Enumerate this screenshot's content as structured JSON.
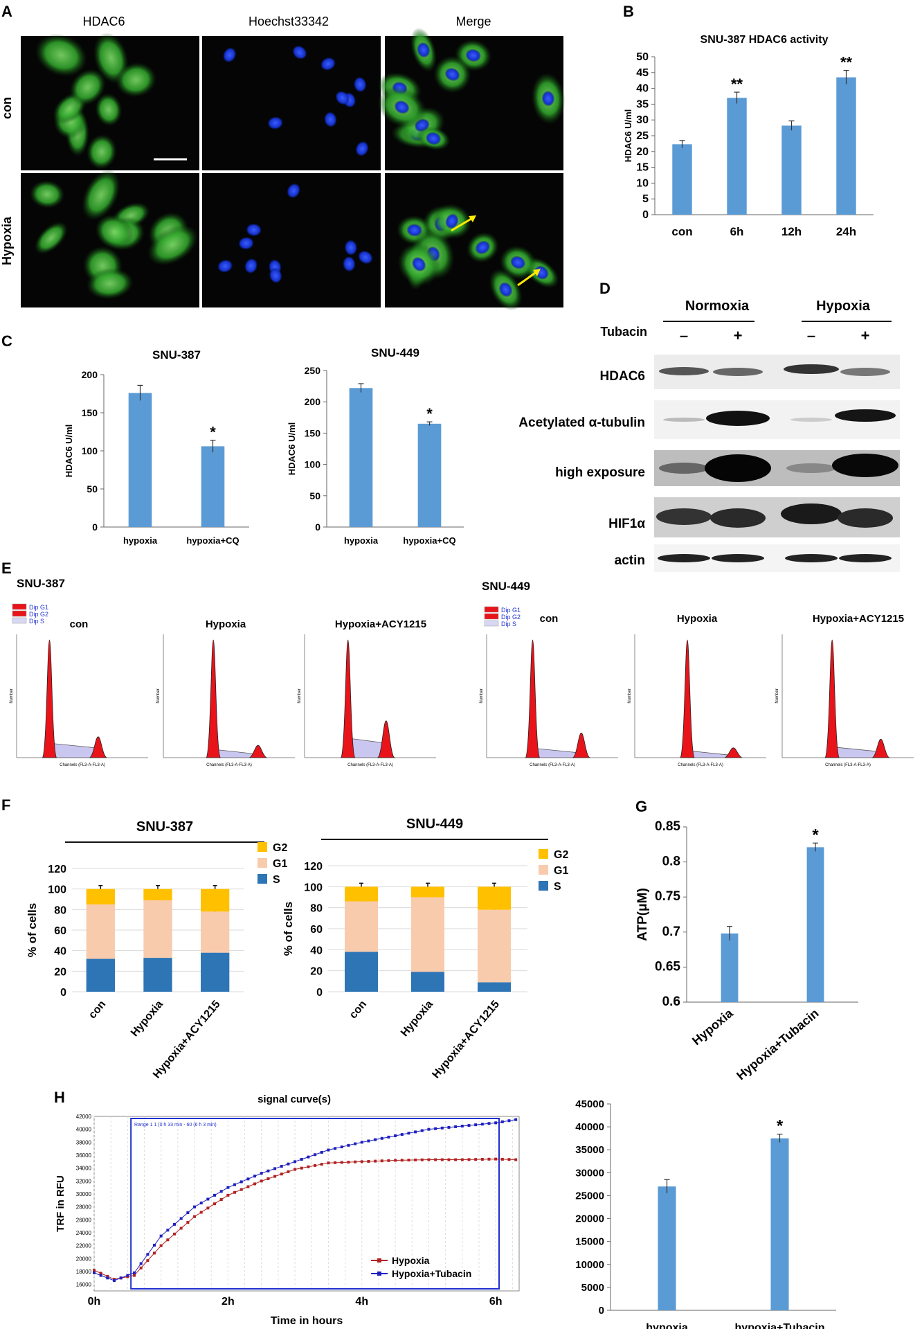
{
  "panel_letters": [
    "A",
    "B",
    "C",
    "D",
    "E",
    "F",
    "G",
    "H"
  ],
  "panelA": {
    "columns": [
      "HDAC6",
      "Hoechst33342",
      "Merge"
    ],
    "rows": [
      "con",
      "Hypoxia"
    ]
  },
  "panelD": {
    "groups": [
      "Normoxia",
      "Hypoxia"
    ],
    "treatment_label": "Tubacin",
    "lane_signs": [
      "–",
      "+",
      "–",
      "+"
    ],
    "blots": [
      "HDAC6",
      "Acetylated α-tubulin",
      "high exposure",
      "HIF1α",
      "actin"
    ]
  },
  "panelE": {
    "cell_lines": [
      "SNU-387",
      "SNU-449"
    ],
    "conditions": [
      "con",
      "Hypoxia",
      "Hypoxia+ACY1215"
    ],
    "legend": [
      "Dip G1",
      "Dip G2",
      "Dip S"
    ],
    "ylabel": "Number",
    "xlabel": "Channels (FL3-A-FL3-A)"
  },
  "chart_data": [
    {
      "id": "B",
      "type": "bar",
      "title": "SNU-387 HDAC6 activity",
      "ylabel": "HDAC6 U/ml",
      "categories": [
        "con",
        "6h",
        "12h",
        "24h"
      ],
      "values": [
        22.3,
        37,
        28.2,
        43.5
      ],
      "errors": [
        1.2,
        1.8,
        1.5,
        2.2
      ],
      "annotations": [
        "",
        "**",
        "",
        "**"
      ],
      "ylim": [
        0,
        50
      ],
      "yticks": [
        0,
        5,
        10,
        15,
        20,
        25,
        30,
        35,
        40,
        45,
        50
      ]
    },
    {
      "id": "C1",
      "type": "bar",
      "title": "SNU-387",
      "ylabel": "HDAC6 U/ml",
      "categories": [
        "hypoxia",
        "hypoxia+CQ"
      ],
      "values": [
        176,
        106
      ],
      "errors": [
        10,
        8
      ],
      "annotations": [
        "",
        "*"
      ],
      "ylim": [
        0,
        200
      ],
      "yticks": [
        0,
        50,
        100,
        150,
        200
      ]
    },
    {
      "id": "C2",
      "type": "bar",
      "title": "SNU-449",
      "ylabel": "HDAC6 U/ml",
      "categories": [
        "hypoxia",
        "hypoxia+CQ"
      ],
      "values": [
        222,
        165
      ],
      "errors": [
        7,
        3
      ],
      "annotations": [
        "",
        "*"
      ],
      "ylim": [
        0,
        250
      ],
      "yticks": [
        0,
        50,
        100,
        150,
        200,
        250
      ]
    },
    {
      "id": "F1",
      "type": "bar",
      "title": "SNU-387",
      "ylabel": "% of cells",
      "categories": [
        "con",
        "Hypoxia",
        "Hypoxia+ACY1215"
      ],
      "series": [
        {
          "name": "S",
          "values": [
            32,
            33,
            38
          ],
          "color": "#2e75b6"
        },
        {
          "name": "G1",
          "values": [
            53,
            56,
            40
          ],
          "color": "#f8cbad"
        },
        {
          "name": "G2",
          "values": [
            15,
            11,
            22
          ],
          "color": "#ffc000"
        }
      ],
      "ylim": [
        0,
        120
      ],
      "yticks": [
        0,
        20,
        40,
        60,
        80,
        100,
        120
      ]
    },
    {
      "id": "F2",
      "type": "bar",
      "title": "SNU-449",
      "ylabel": "% of cells",
      "categories": [
        "con",
        "Hypoxia",
        "Hypoxia+ACY1215"
      ],
      "series": [
        {
          "name": "S",
          "values": [
            38,
            19,
            9
          ],
          "color": "#2e75b6"
        },
        {
          "name": "G1",
          "values": [
            48,
            71,
            69
          ],
          "color": "#f8cbad"
        },
        {
          "name": "G2",
          "values": [
            14,
            10,
            22
          ],
          "color": "#ffc000"
        }
      ],
      "ylim": [
        0,
        120
      ],
      "yticks": [
        0,
        20,
        40,
        60,
        80,
        100,
        120
      ]
    },
    {
      "id": "G",
      "type": "bar",
      "ylabel": "ATP(μM)",
      "categories": [
        "Hypoxia",
        "Hypoxia+Tubacin"
      ],
      "values": [
        0.698,
        0.821
      ],
      "errors": [
        0.01,
        0.006
      ],
      "annotations": [
        "",
        "*"
      ],
      "ylim": [
        0.6,
        0.85
      ],
      "yticks": [
        0.6,
        0.65,
        0.7,
        0.75,
        0.8,
        0.85
      ]
    },
    {
      "id": "H1",
      "type": "line",
      "title": "signal curve(s)",
      "xlabel": "Time in hours",
      "ylabel": "TRF in RFU",
      "xticks": [
        "0h",
        "2h",
        "4h",
        "6h"
      ],
      "yticks": [
        16000,
        18000,
        20000,
        22000,
        24000,
        26000,
        28000,
        30000,
        32000,
        34000,
        36000,
        38000,
        40000,
        42000
      ],
      "ylim": [
        15000,
        42000
      ],
      "range_label": "Range 1 1 (0 h 33 min - 60 (6 h 3 min)",
      "series": [
        {
          "name": "Hypoxia",
          "color": "#b22222",
          "points": [
            [
              0,
              18200
            ],
            [
              0.3,
              16800
            ],
            [
              0.6,
              17400
            ],
            [
              1,
              22000
            ],
            [
              1.5,
              26500
            ],
            [
              2,
              29800
            ],
            [
              2.5,
              32000
            ],
            [
              3,
              33800
            ],
            [
              3.5,
              34800
            ],
            [
              4,
              35000
            ],
            [
              4.5,
              35200
            ],
            [
              5,
              35300
            ],
            [
              5.5,
              35300
            ],
            [
              6,
              35400
            ],
            [
              6.3,
              35300
            ]
          ]
        },
        {
          "name": "Hypoxia+Tubacin",
          "color": "#1f1fbf",
          "points": [
            [
              0,
              17800
            ],
            [
              0.3,
              16600
            ],
            [
              0.6,
              17800
            ],
            [
              1,
              23500
            ],
            [
              1.5,
              28000
            ],
            [
              2,
              31000
            ],
            [
              2.5,
              33200
            ],
            [
              3,
              35000
            ],
            [
              3.5,
              36800
            ],
            [
              4,
              38000
            ],
            [
              4.5,
              39000
            ],
            [
              5,
              40000
            ],
            [
              5.5,
              40500
            ],
            [
              6,
              41000
            ],
            [
              6.3,
              41500
            ]
          ]
        }
      ]
    },
    {
      "id": "H2",
      "type": "bar",
      "categories": [
        "hypoxia",
        "hypoxia+Tubacin"
      ],
      "values": [
        27000,
        37500
      ],
      "errors": [
        1500,
        900
      ],
      "annotations": [
        "",
        "*"
      ],
      "ylim": [
        0,
        45000
      ],
      "yticks": [
        0,
        5000,
        10000,
        15000,
        20000,
        25000,
        30000,
        35000,
        40000,
        45000
      ]
    }
  ]
}
